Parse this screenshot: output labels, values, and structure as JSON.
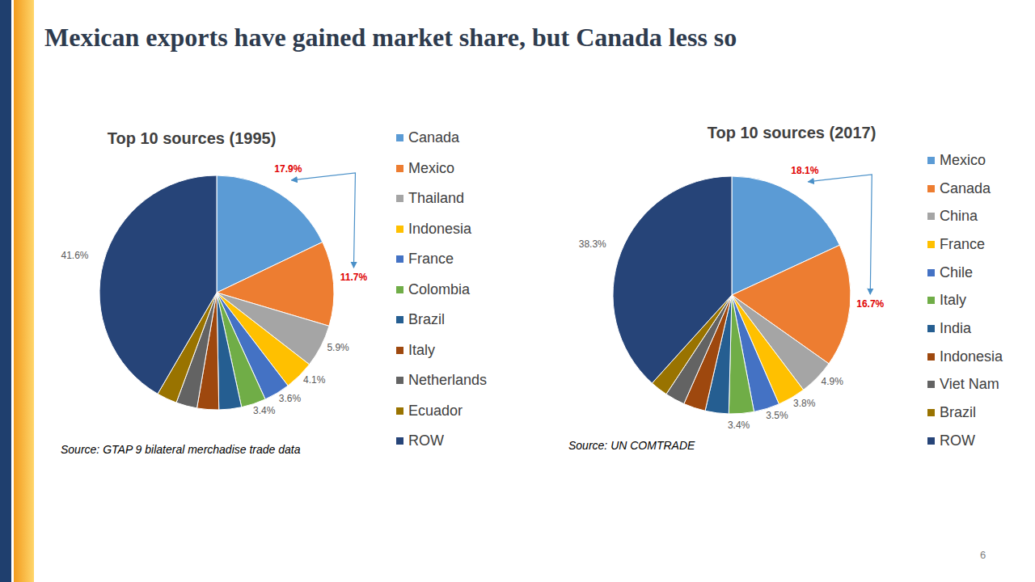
{
  "title": "Mexican exports have gained market share, but Canada less so",
  "page": 6,
  "chart_data": [
    {
      "type": "pie",
      "title": "Top 10 sources (1995)",
      "source": "Source: GTAP 9 bilateral merchadise trade data",
      "categories": [
        "Canada",
        "Mexico",
        "Thailand",
        "Indonesia",
        "France",
        "Colombia",
        "Brazil",
        "Italy",
        "Netherlands",
        "Ecuador",
        "ROW"
      ],
      "values": [
        17.9,
        11.7,
        5.9,
        4.1,
        3.6,
        3.4,
        3.1,
        3.0,
        2.9,
        2.8,
        41.6
      ],
      "value_labels": [
        "17.9%",
        "11.7%",
        "5.9%",
        "4.1%",
        "3.6%",
        "3.4%",
        null,
        null,
        null,
        null,
        "41.6%"
      ],
      "colors": [
        "#5B9BD5",
        "#ED7D31",
        "#A5A5A5",
        "#FFC000",
        "#4472C4",
        "#70AD47",
        "#255E91",
        "#9E480E",
        "#636363",
        "#997300",
        "#264478"
      ],
      "data_labels": true,
      "legend": "right"
    },
    {
      "type": "pie",
      "title": "Top 10 sources (2017)",
      "source": "Source: UN COMTRADE",
      "categories": [
        "Mexico",
        "Canada",
        "China",
        "France",
        "Chile",
        "Italy",
        "India",
        "Indonesia",
        "Viet Nam",
        "Brazil",
        "ROW"
      ],
      "values": [
        18.1,
        16.7,
        4.9,
        3.8,
        3.5,
        3.4,
        3.2,
        3.0,
        2.7,
        2.4,
        38.3
      ],
      "value_labels": [
        "18.1%",
        "16.7%",
        "4.9%",
        "3.8%",
        "3.5%",
        "3.4%",
        null,
        null,
        null,
        null,
        "38.3%"
      ],
      "colors": [
        "#5B9BD5",
        "#ED7D31",
        "#A5A5A5",
        "#FFC000",
        "#4472C4",
        "#70AD47",
        "#255E91",
        "#9E480E",
        "#636363",
        "#997300",
        "#264478"
      ],
      "data_labels": true,
      "legend": "right"
    }
  ]
}
